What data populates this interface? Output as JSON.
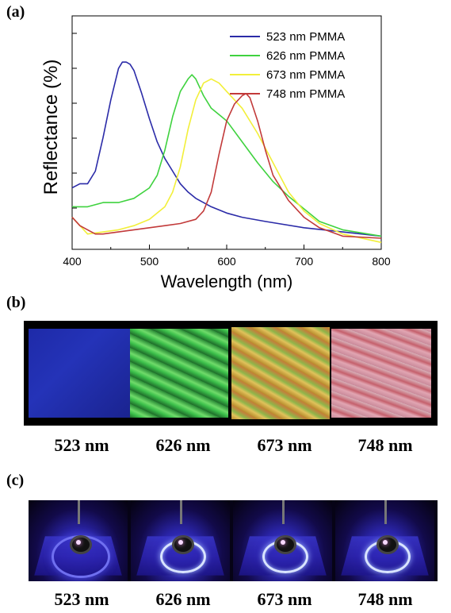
{
  "panels": {
    "a": "(a)",
    "b": "(b)",
    "c": "(c)"
  },
  "chart_data": {
    "type": "line",
    "xlabel": "Wavelength (nm)",
    "ylabel": "Reflectance (%)",
    "xlim": [
      400,
      800
    ],
    "ylim": [
      0,
      1
    ],
    "x_ticks": [
      400,
      500,
      600,
      700,
      800
    ],
    "legend_position": "top-right",
    "grid": false,
    "series": [
      {
        "name": "523 nm PMMA",
        "color": "#2b2ba8",
        "x": [
          400,
          410,
          420,
          430,
          440,
          450,
          460,
          465,
          470,
          475,
          480,
          490,
          500,
          510,
          520,
          530,
          540,
          550,
          560,
          580,
          600,
          620,
          650,
          700,
          750,
          800
        ],
        "y": [
          0.24,
          0.26,
          0.26,
          0.32,
          0.48,
          0.66,
          0.81,
          0.84,
          0.84,
          0.83,
          0.8,
          0.69,
          0.57,
          0.46,
          0.38,
          0.32,
          0.26,
          0.22,
          0.19,
          0.15,
          0.12,
          0.1,
          0.08,
          0.05,
          0.03,
          0.01
        ]
      },
      {
        "name": "626 nm PMMA",
        "color": "#3fd23f",
        "x": [
          400,
          420,
          440,
          460,
          480,
          500,
          510,
          520,
          530,
          540,
          550,
          555,
          560,
          570,
          580,
          600,
          620,
          640,
          660,
          680,
          700,
          720,
          750,
          800
        ],
        "y": [
          0.15,
          0.15,
          0.17,
          0.17,
          0.19,
          0.24,
          0.3,
          0.42,
          0.58,
          0.7,
          0.76,
          0.78,
          0.76,
          0.68,
          0.62,
          0.56,
          0.46,
          0.36,
          0.27,
          0.2,
          0.14,
          0.08,
          0.04,
          0.01
        ]
      },
      {
        "name": "673 nm PMMA",
        "color": "#f2ef3a",
        "x": [
          400,
          420,
          440,
          460,
          480,
          500,
          520,
          530,
          540,
          550,
          560,
          570,
          580,
          590,
          600,
          620,
          640,
          660,
          680,
          700,
          720,
          750,
          800
        ],
        "y": [
          0.1,
          0.02,
          0.03,
          0.04,
          0.06,
          0.09,
          0.15,
          0.22,
          0.34,
          0.52,
          0.66,
          0.74,
          0.76,
          0.74,
          0.7,
          0.62,
          0.5,
          0.36,
          0.22,
          0.13,
          0.07,
          0.02,
          -0.02
        ]
      },
      {
        "name": "748 nm PMMA",
        "color": "#c23a3a",
        "x": [
          400,
          410,
          420,
          430,
          440,
          460,
          480,
          500,
          520,
          540,
          560,
          570,
          580,
          590,
          600,
          610,
          620,
          625,
          630,
          640,
          650,
          660,
          680,
          700,
          720,
          750,
          800
        ],
        "y": [
          0.1,
          0.06,
          0.04,
          0.02,
          0.02,
          0.03,
          0.04,
          0.05,
          0.06,
          0.07,
          0.09,
          0.13,
          0.22,
          0.4,
          0.56,
          0.64,
          0.68,
          0.69,
          0.67,
          0.56,
          0.42,
          0.3,
          0.18,
          0.1,
          0.05,
          0.01,
          0.0
        ]
      }
    ]
  },
  "photo_b": {
    "captions": [
      "523 nm",
      "626 nm",
      "673 nm",
      "748 nm"
    ]
  },
  "photo_c": {
    "captions": [
      "523 nm",
      "626 nm",
      "673 nm",
      "748 nm"
    ]
  }
}
